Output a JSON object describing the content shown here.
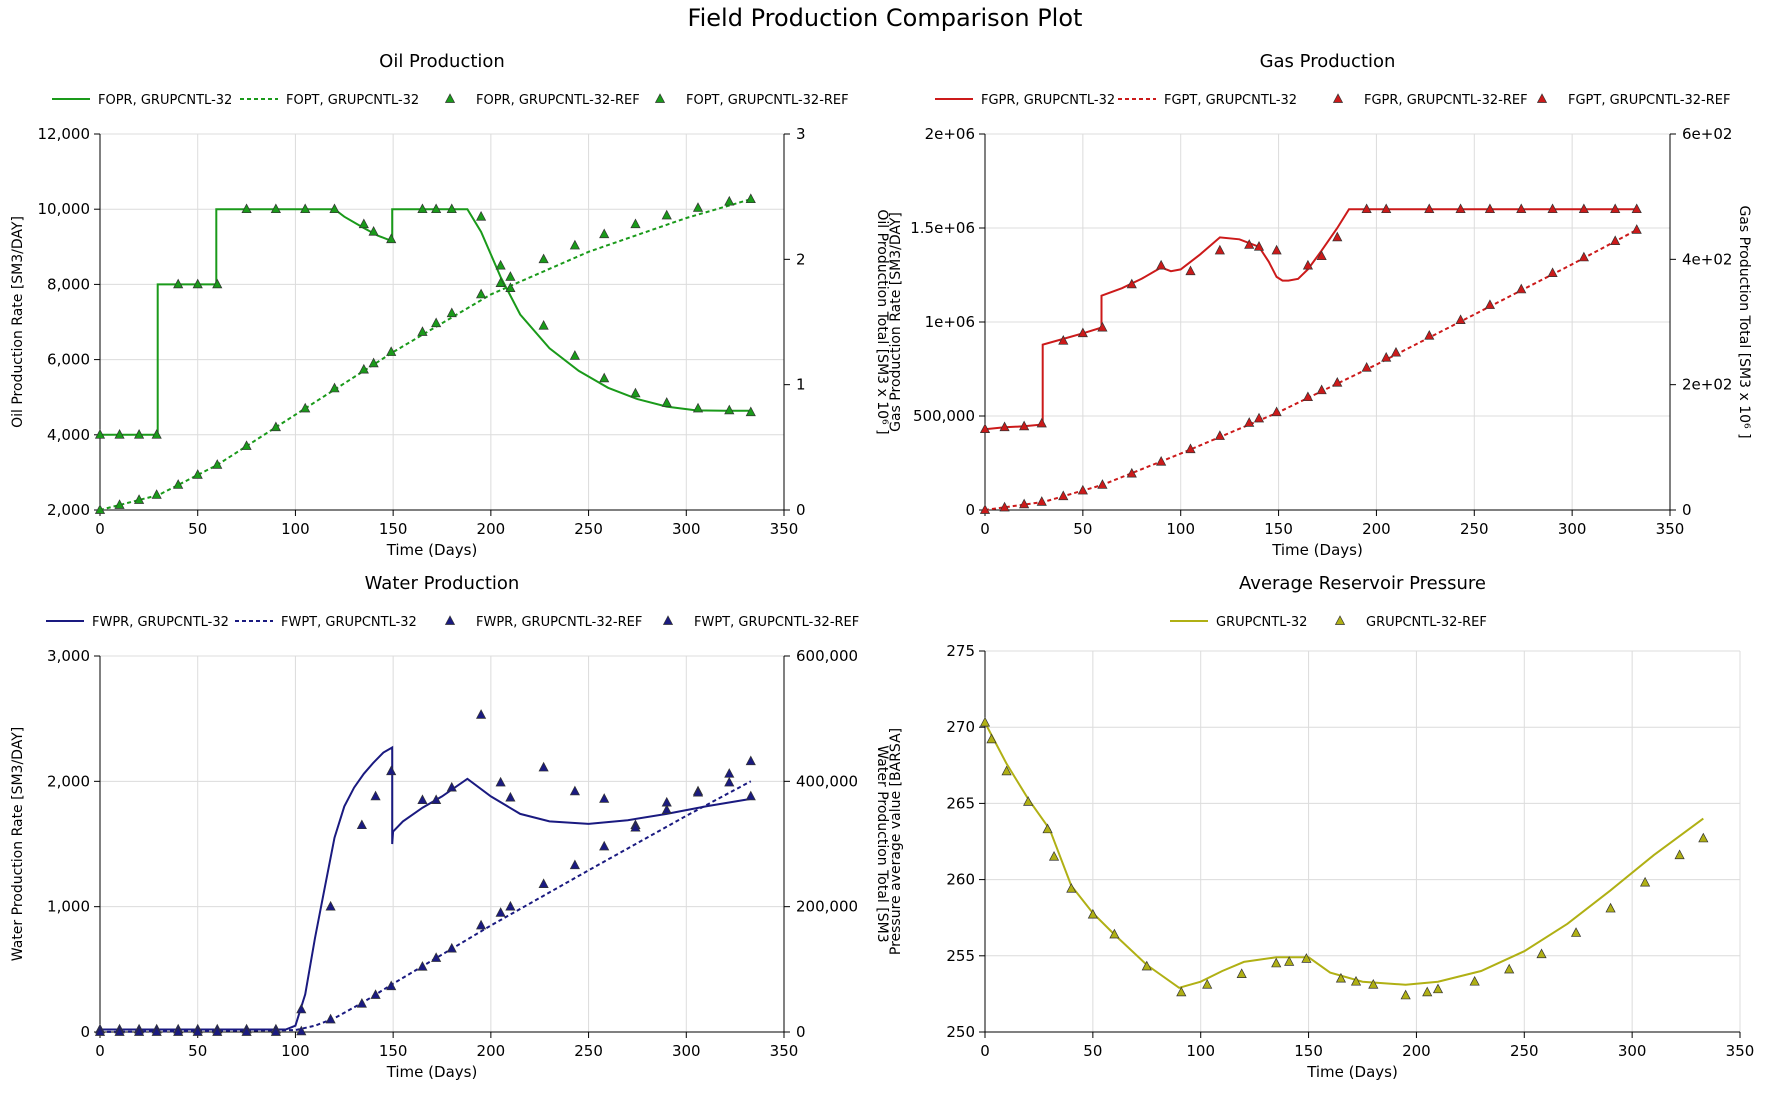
{
  "title": "Field Production Comparison Plot",
  "chart_data": [
    {
      "id": "oil",
      "type": "line",
      "title": "Oil Production",
      "xlabel": "Time (Days)",
      "ylabel": "Oil Production Rate [SM3/DAY]",
      "y2label": "Oil Production Total [SM3 x 10⁶ ]",
      "xlim": [
        0,
        350
      ],
      "xticks": [
        0,
        50,
        100,
        150,
        200,
        250,
        300,
        350
      ],
      "xtick_labels": [
        "0",
        "50",
        "100",
        "150",
        "200",
        "250",
        "300",
        "350"
      ],
      "ylim": [
        2000,
        12000
      ],
      "yticks": [
        2000,
        4000,
        6000,
        8000,
        10000,
        12000
      ],
      "ytick_labels": [
        "2,000",
        "4,000",
        "6,000",
        "8,000",
        "10,000",
        "12,000"
      ],
      "y2lim": [
        0,
        3
      ],
      "y2ticks": [
        0,
        1,
        2,
        3
      ],
      "y2tick_labels": [
        "0",
        "1",
        "2",
        "3"
      ],
      "grid": true,
      "legend_position": "top",
      "color": "#1a9a1a",
      "series": [
        {
          "name": "FOPR, GRUPCNTL-32",
          "style": "solid",
          "axis": "left",
          "x": [
            0,
            29.5,
            29.5,
            59.5,
            59.5,
            120,
            125,
            135,
            142,
            149.5,
            149.5,
            180,
            188,
            195,
            205,
            215,
            230,
            245,
            260,
            275,
            290,
            305,
            320,
            333
          ],
          "y": [
            4000,
            4000,
            8000,
            8000,
            10000,
            10000,
            9800,
            9500,
            9300,
            9150,
            10000,
            10000,
            10000,
            9400,
            8200,
            7200,
            6300,
            5700,
            5250,
            4950,
            4750,
            4650,
            4640,
            4640
          ]
        },
        {
          "name": "FOPT, GRUPCNTL-32",
          "style": "dotted",
          "axis": "right",
          "x": [
            0,
            30,
            60,
            100,
            150,
            200,
            250,
            300,
            333
          ],
          "y": [
            0,
            0.12,
            0.36,
            0.76,
            1.26,
            1.72,
            2.06,
            2.33,
            2.48
          ]
        },
        {
          "name": "FOPR, GRUPCNTL-32-REF",
          "style": "triangle",
          "axis": "left",
          "x": [
            0,
            10,
            20,
            29,
            40,
            50,
            60,
            75,
            90,
            105,
            120,
            135,
            140,
            149,
            165,
            172,
            180,
            195,
            205,
            210,
            227,
            243,
            258,
            274,
            290,
            306,
            322,
            333
          ],
          "y": [
            4000,
            4000,
            4000,
            4000,
            8000,
            8000,
            8000,
            10000,
            10000,
            10000,
            10000,
            9600,
            9400,
            9200,
            10000,
            10000,
            10000,
            9800,
            8500,
            7900,
            6900,
            6100,
            5500,
            5100,
            4850,
            4700,
            4650,
            4600
          ]
        },
        {
          "name": "FOPT, GRUPCNTL-32-REF",
          "style": "triangle",
          "axis": "right",
          "x": [
            0,
            10,
            20,
            29,
            40,
            50,
            60,
            75,
            90,
            105,
            120,
            135,
            140,
            149,
            165,
            172,
            180,
            195,
            205,
            210,
            227,
            243,
            258,
            274,
            290,
            306,
            322,
            333
          ],
          "y": [
            0,
            0.04,
            0.08,
            0.12,
            0.2,
            0.28,
            0.36,
            0.51,
            0.66,
            0.81,
            0.97,
            1.12,
            1.17,
            1.26,
            1.42,
            1.49,
            1.57,
            1.72,
            1.81,
            1.86,
            2.0,
            2.11,
            2.2,
            2.28,
            2.35,
            2.41,
            2.46,
            2.48
          ]
        }
      ]
    },
    {
      "id": "gas",
      "type": "line",
      "title": "Gas Production",
      "xlabel": "Time (Days)",
      "ylabel": "Gas Production Rate [SM3/DAY]",
      "y2label": "Gas Production Total [SM3 x 10⁶ ]",
      "xlim": [
        0,
        350
      ],
      "xticks": [
        0,
        50,
        100,
        150,
        200,
        250,
        300,
        350
      ],
      "xtick_labels": [
        "0",
        "50",
        "100",
        "150",
        "200",
        "250",
        "300",
        "350"
      ],
      "ylim": [
        0,
        2000000
      ],
      "yticks": [
        0,
        500000,
        1000000,
        1500000,
        2000000
      ],
      "ytick_labels": [
        "0",
        "500,000",
        "1e+06",
        "1.5e+06",
        "2e+06"
      ],
      "y2lim": [
        0,
        600
      ],
      "y2ticks": [
        0,
        200,
        400,
        600
      ],
      "y2tick_labels": [
        "0",
        "2e+02",
        "4e+02",
        "6e+02"
      ],
      "grid": true,
      "legend_position": "top",
      "color": "#cc1a1a",
      "series": [
        {
          "name": "FGPR, GRUPCNTL-32",
          "style": "solid",
          "axis": "left",
          "x": [
            0,
            10,
            20,
            29.5,
            29.5,
            40,
            50,
            59.5,
            59.5,
            70,
            80,
            90,
            95,
            100,
            110,
            120,
            130,
            140,
            145,
            149,
            152,
            155,
            160,
            165,
            172,
            180,
            186,
            200,
            250,
            300,
            333
          ],
          "y": [
            430000,
            440000,
            445000,
            455000,
            880000,
            910000,
            940000,
            970000,
            1140000,
            1180000,
            1230000,
            1290000,
            1270000,
            1280000,
            1360000,
            1450000,
            1440000,
            1400000,
            1320000,
            1240000,
            1220000,
            1220000,
            1230000,
            1280000,
            1380000,
            1500000,
            1600000,
            1600000,
            1600000,
            1600000,
            1600000
          ]
        },
        {
          "name": "FGPT, GRUPCNTL-32",
          "style": "dotted",
          "axis": "right",
          "x": [
            0,
            30,
            60,
            100,
            150,
            200,
            250,
            300,
            333
          ],
          "y": [
            0,
            13,
            40,
            90,
            156,
            232,
            312,
            392,
            447
          ]
        },
        {
          "name": "FGPR, GRUPCNTL-32-REF",
          "style": "triangle",
          "axis": "left",
          "x": [
            0,
            10,
            20,
            29,
            40,
            50,
            60,
            75,
            90,
            105,
            120,
            135,
            140,
            149,
            165,
            172,
            180,
            195,
            205,
            227,
            243,
            258,
            274,
            290,
            306,
            322,
            333
          ],
          "y": [
            430000,
            440000,
            445000,
            460000,
            900000,
            940000,
            970000,
            1200000,
            1300000,
            1270000,
            1380000,
            1410000,
            1400000,
            1380000,
            1300000,
            1350000,
            1450000,
            1600000,
            1600000,
            1600000,
            1600000,
            1600000,
            1600000,
            1600000,
            1600000,
            1600000,
            1600000
          ]
        },
        {
          "name": "FGPT, GRUPCNTL-32-REF",
          "style": "triangle",
          "axis": "right",
          "x": [
            0,
            10,
            20,
            29,
            40,
            50,
            60,
            75,
            90,
            105,
            120,
            135,
            140,
            149,
            165,
            172,
            180,
            195,
            205,
            210,
            227,
            243,
            258,
            274,
            290,
            306,
            322,
            333
          ],
          "y": [
            0,
            4,
            9,
            13,
            22,
            31,
            40,
            58,
            77,
            97,
            118,
            139,
            146,
            156,
            180,
            191,
            203,
            227,
            243,
            251,
            278,
            303,
            327,
            352,
            378,
            403,
            429,
            447
          ]
        }
      ]
    },
    {
      "id": "water",
      "type": "line",
      "title": "Water Production",
      "xlabel": "Time (Days)",
      "ylabel": "Water Production Rate [SM3/DAY]",
      "y2label": "Water Production Total [SM3",
      "xlim": [
        0,
        350
      ],
      "xticks": [
        0,
        50,
        100,
        150,
        200,
        250,
        300,
        350
      ],
      "xtick_labels": [
        "0",
        "50",
        "100",
        "150",
        "200",
        "250",
        "300",
        "350"
      ],
      "ylim": [
        0,
        3000
      ],
      "yticks": [
        0,
        1000,
        2000,
        3000
      ],
      "ytick_labels": [
        "0",
        "1,000",
        "2,000",
        "3,000"
      ],
      "y2lim": [
        0,
        600000
      ],
      "y2ticks": [
        0,
        200000,
        400000,
        600000
      ],
      "y2tick_labels": [
        "0",
        "200,000",
        "400,000",
        "600,000"
      ],
      "grid": true,
      "legend_position": "top",
      "color": "#1a1a80",
      "series": [
        {
          "name": "FWPR, GRUPCNTL-32",
          "style": "solid",
          "axis": "left",
          "x": [
            0,
            95,
            100,
            105,
            110,
            115,
            120,
            125,
            130,
            135,
            140,
            145,
            149.5,
            149.5,
            150,
            155,
            165,
            175,
            188,
            200,
            215,
            230,
            250,
            270,
            290,
            310,
            333
          ],
          "y": [
            20,
            20,
            50,
            300,
            750,
            1150,
            1550,
            1800,
            1950,
            2060,
            2150,
            2230,
            2270,
            1500,
            1600,
            1680,
            1790,
            1880,
            2020,
            1880,
            1740,
            1680,
            1660,
            1690,
            1740,
            1800,
            1860
          ]
        },
        {
          "name": "FWPT, GRUPCNTL-32",
          "style": "dotted",
          "axis": "right",
          "x": [
            0,
            100,
            110,
            120,
            135,
            150,
            200,
            250,
            300,
            333
          ],
          "y": [
            0,
            3000,
            10000,
            22000,
            48000,
            77000,
            170000,
            258000,
            345000,
            400000
          ]
        },
        {
          "name": "FWPR, GRUPCNTL-32-REF",
          "style": "triangle",
          "axis": "left",
          "x": [
            0,
            10,
            20,
            29,
            40,
            50,
            60,
            75,
            90,
            103,
            118,
            134,
            141,
            149,
            165,
            172,
            180,
            195,
            205,
            210,
            227,
            243,
            258,
            274,
            290,
            306,
            322,
            333
          ],
          "y": [
            20,
            20,
            20,
            20,
            20,
            20,
            20,
            20,
            20,
            180,
            1000,
            1650,
            1880,
            2080,
            1850,
            1850,
            1950,
            2530,
            1990,
            1870,
            2110,
            1920,
            1860,
            1650,
            1830,
            1920,
            2060,
            2160
          ]
        },
        {
          "name": "FWPT, GRUPCNTL-32-REF",
          "style": "triangle",
          "axis": "right",
          "x": [
            0,
            10,
            20,
            29,
            40,
            50,
            60,
            75,
            90,
            103,
            118,
            134,
            141,
            149,
            165,
            172,
            180,
            195,
            205,
            210,
            227,
            243,
            258,
            274,
            290,
            306,
            322,
            333
          ],
          "y": [
            0,
            0,
            0,
            0,
            0,
            0,
            0,
            0,
            0,
            1000,
            20000,
            45000,
            59000,
            73000,
            104000,
            118000,
            133000,
            170000,
            190000,
            200000,
            236000,
            266000,
            296000,
            326000,
            354000,
            382000,
            398000,
            376000
          ]
        }
      ]
    },
    {
      "id": "pressure",
      "type": "line",
      "title": "Average Reservoir Pressure",
      "xlabel": "Time (Days)",
      "ylabel": "Pressure average value [BARSA]",
      "xlim": [
        0,
        350
      ],
      "xticks": [
        0,
        50,
        100,
        150,
        200,
        250,
        300,
        350
      ],
      "xtick_labels": [
        "0",
        "50",
        "100",
        "150",
        "200",
        "250",
        "300",
        "350"
      ],
      "ylim": [
        250,
        275
      ],
      "yticks": [
        250,
        255,
        260,
        265,
        270,
        275
      ],
      "ytick_labels": [
        "250",
        "255",
        "260",
        "265",
        "270",
        "275"
      ],
      "grid": true,
      "legend_position": "top",
      "color": "#b0b014",
      "series": [
        {
          "name": "GRUPCNTL-32",
          "style": "solid",
          "axis": "left",
          "x": [
            0,
            10,
            20,
            30,
            40,
            50,
            60,
            75,
            90,
            100,
            110,
            120,
            135,
            150,
            160,
            175,
            195,
            210,
            230,
            250,
            270,
            290,
            310,
            333
          ],
          "y": [
            270.3,
            267.6,
            265.3,
            263.3,
            259.6,
            257.8,
            256.4,
            254.4,
            252.9,
            253.3,
            254.0,
            254.6,
            254.9,
            254.9,
            253.9,
            253.3,
            253.1,
            253.3,
            254.0,
            255.3,
            257.1,
            259.3,
            261.6,
            264.0
          ]
        },
        {
          "name": "GRUPCNTL-32-REF",
          "style": "triangle",
          "axis": "left",
          "x": [
            0,
            3,
            10,
            20,
            29,
            32,
            40,
            50,
            60,
            75,
            91,
            103,
            119,
            135,
            141,
            149,
            165,
            172,
            180,
            195,
            205,
            210,
            227,
            243,
            258,
            274,
            290,
            306,
            322,
            333
          ],
          "y": [
            270.3,
            269.2,
            267.1,
            265.1,
            263.3,
            261.5,
            259.4,
            257.7,
            256.4,
            254.3,
            252.6,
            253.1,
            253.8,
            254.5,
            254.6,
            254.8,
            253.5,
            253.3,
            253.1,
            252.4,
            252.6,
            252.8,
            253.3,
            254.1,
            255.1,
            256.5,
            258.1,
            259.8,
            261.6,
            262.7
          ]
        }
      ]
    }
  ]
}
